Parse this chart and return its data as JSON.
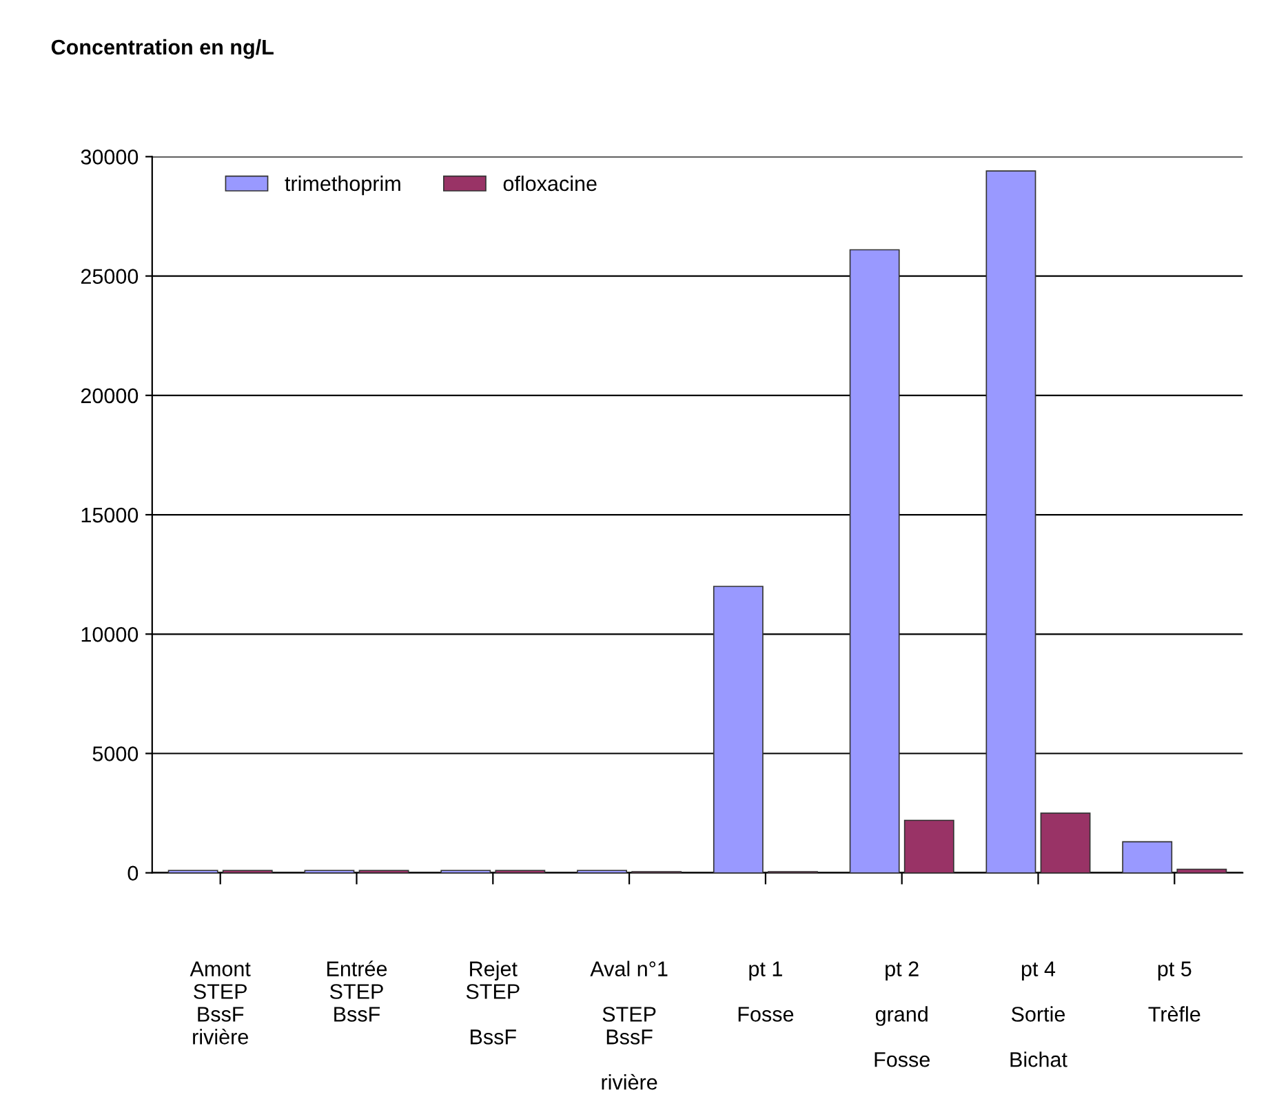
{
  "chart_data": {
    "type": "bar",
    "title": "Concentration en ng/L",
    "categories": [
      "Amont\nSTEP\nBssF\nrivière",
      "Entrée\nSTEP\nBssF",
      "Rejet\nSTEP\n\nBssF",
      "Aval n°1\n\nSTEP\nBssF\n\nrivière",
      "pt 1\n\nFosse",
      "pt 2\n\ngrand\n\nFosse",
      "pt 4\n\nSortie\n\nBichat",
      "pt 5\n\nTrèfle"
    ],
    "series": [
      {
        "name": "trimethoprim",
        "color": "#9999ff",
        "values": [
          100,
          100,
          100,
          100,
          12000,
          26100,
          29400,
          1300
        ]
      },
      {
        "name": "ofloxacine",
        "color": "#993366",
        "values": [
          100,
          100,
          100,
          50,
          50,
          2200,
          2500,
          150
        ]
      }
    ],
    "ylim": [
      0,
      30000
    ],
    "yticks": [
      0,
      5000,
      10000,
      15000,
      20000,
      25000,
      30000
    ],
    "grid": "y",
    "legend": "top left"
  }
}
